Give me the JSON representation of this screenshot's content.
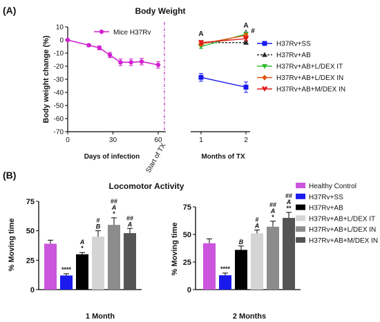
{
  "colors": {
    "mice_series": "#d020d0",
    "start_line": "#c030c0",
    "SS": "#1a1aee",
    "AB": "#222222",
    "LIT": "#33bb33",
    "LIN": "#dd5511",
    "MIN": "#e01818"
  },
  "panelA": {
    "label": "(A)",
    "chart_data": {
      "type": "line",
      "title": "Body Weight",
      "ylabel": "Body weight change (%)",
      "ylim": [
        -70,
        10
      ],
      "yticks": [
        "10",
        "0",
        "-10",
        "-20",
        "-30",
        "-40",
        "-50",
        "-60",
        "-70"
      ],
      "infection": {
        "xlabel": "Days of infection",
        "xticks": [
          "0",
          "30",
          "60"
        ],
        "xlim": [
          0,
          65
        ],
        "marker_label": "Start of TX",
        "series": [
          {
            "name": "Mice H37Rv",
            "x": [
              0,
              14,
              21,
              28,
              35,
              42,
              49,
              60
            ],
            "y": [
              0,
              -4,
              -6,
              -11.5,
              -17,
              -17,
              -16.5,
              -19
            ],
            "err": [
              0.5,
              1,
              1.5,
              2,
              2.5,
              2.5,
              2.5,
              2.5
            ]
          }
        ]
      },
      "treatment": {
        "xlabel": "Months of TX",
        "xticks": [
          "1",
          "2"
        ],
        "series": [
          {
            "name": "H37Rv+SS",
            "x": [
              1,
              2
            ],
            "y": [
              -28.5,
              -36
            ],
            "err": [
              3,
              4
            ]
          },
          {
            "name": "H37Rv+AB",
            "x": [
              1,
              2
            ],
            "y": [
              -2,
              -2
            ],
            "err": [
              1,
              1
            ]
          },
          {
            "name": "H37Rv+AB+L/DEX IT",
            "x": [
              1,
              2
            ],
            "y": [
              -5,
              4.5
            ],
            "err": [
              1.5,
              1.5
            ]
          },
          {
            "name": "H37Rv+AB+L/DEX IN",
            "x": [
              1,
              2
            ],
            "y": [
              -3,
              3.5
            ],
            "err": [
              1.5,
              1.5
            ]
          },
          {
            "name": "H37Rv+AB+M/DEX IN",
            "x": [
              1,
              2
            ],
            "y": [
              -2,
              1
            ],
            "err": [
              1.5,
              1.5
            ]
          }
        ],
        "annotations": [
          {
            "text": "A",
            "x": 1
          },
          {
            "text": "A",
            "x": 2
          },
          {
            "text": "*",
            "x": 2
          },
          {
            "text": "#",
            "x": 2
          }
        ]
      }
    }
  },
  "panelB": {
    "label": "(B)",
    "chart_data": [
      {
        "type": "bar",
        "title": "Locomotor Activity",
        "xlabel": "1 Month",
        "ylabel": "% Moving time",
        "ylim": [
          0,
          75
        ],
        "yticks": [
          "0",
          "25",
          "50",
          "75"
        ],
        "categories": [
          "Healthy Control",
          "H37Rv+SS",
          "H37Rv+AB",
          "H37Rv+AB+L/DEX IT",
          "H37Rv+AB+L/DEX IN",
          "H37Rv+AB+M/DEX IN"
        ],
        "values": [
          39,
          12,
          30,
          45,
          55,
          48
        ],
        "errors": [
          3,
          1.5,
          1.5,
          5,
          6,
          4
        ],
        "annotations": [
          {
            "bar": 1,
            "lines": [
              "****"
            ]
          },
          {
            "bar": 2,
            "lines": [
              "A",
              "*"
            ]
          },
          {
            "bar": 3,
            "lines": [
              "#",
              "B"
            ]
          },
          {
            "bar": 4,
            "lines": [
              "##",
              "A",
              "*"
            ]
          },
          {
            "bar": 5,
            "lines": [
              "##",
              "A"
            ]
          }
        ]
      },
      {
        "type": "bar",
        "xlabel": "2 Months",
        "ylabel": "% Moving time",
        "ylim": [
          0,
          75
        ],
        "yticks": [
          "0",
          "25",
          "50",
          "75"
        ],
        "categories": [
          "Healthy Control",
          "H37Rv+SS",
          "H37Rv+AB",
          "H37Rv+AB+L/DEX IT",
          "H37Rv+AB+L/DEX IN",
          "H37Rv+AB+M/DEX IN"
        ],
        "values": [
          42,
          13,
          36,
          51,
          57,
          65
        ],
        "errors": [
          4,
          2,
          3.5,
          3,
          5,
          5
        ],
        "annotations": [
          {
            "bar": 1,
            "lines": [
              "****"
            ]
          },
          {
            "bar": 2,
            "lines": [
              "B"
            ]
          },
          {
            "bar": 3,
            "lines": [
              "#",
              "A"
            ]
          },
          {
            "bar": 4,
            "lines": [
              "##",
              "A",
              "*"
            ]
          },
          {
            "bar": 5,
            "lines": [
              "##",
              "A",
              "**"
            ]
          }
        ]
      }
    ],
    "legend": [
      {
        "name": "Healthy Control",
        "color": "#cc55dd"
      },
      {
        "name": "H37Rv+SS",
        "color": "#1a1aee"
      },
      {
        "name": "H37Rv+AB",
        "color": "#000000"
      },
      {
        "name": "H37Rv+AB+L/DEX IT",
        "color": "#d4d4d4"
      },
      {
        "name": "H37Rv+AB+L/DEX IN",
        "color": "#8c8c8c"
      },
      {
        "name": "H37Rv+AB+M/DEX IN",
        "color": "#555555"
      }
    ]
  }
}
